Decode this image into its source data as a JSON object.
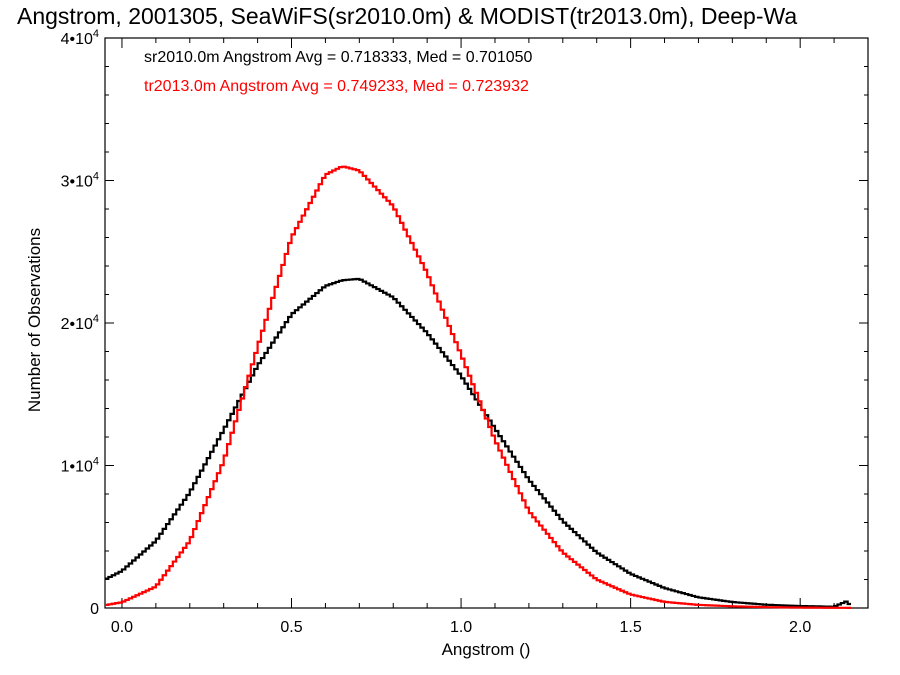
{
  "chart_data": {
    "type": "line",
    "title": "Angstrom, 2001305, SeaWiFS(sr2010.0m) & MODIST(tr2013.0m), Deep-Wa",
    "xlabel": "Angstrom ()",
    "ylabel": "Number of Observations",
    "xlim": [
      -0.05,
      2.2
    ],
    "ylim": [
      0,
      40000
    ],
    "x_ticks": [
      {
        "value": 0.0,
        "label": "0.0"
      },
      {
        "value": 0.5,
        "label": "0.5"
      },
      {
        "value": 1.0,
        "label": "1.0"
      },
      {
        "value": 1.5,
        "label": "1.5"
      },
      {
        "value": 2.0,
        "label": "2.0"
      }
    ],
    "y_ticks": [
      {
        "value": 0,
        "mant": "0",
        "exp": ""
      },
      {
        "value": 10000,
        "mant": "1•10",
        "exp": "4"
      },
      {
        "value": 20000,
        "mant": "2•10",
        "exp": "4"
      },
      {
        "value": 30000,
        "mant": "3•10",
        "exp": "4"
      },
      {
        "value": 40000,
        "mant": "4•10",
        "exp": "4"
      }
    ],
    "grid": false,
    "legend_position": "top-left",
    "series": [
      {
        "name": "sr2010.0m Angstrom Avg = 0.718333, Med = 0.701050",
        "color": "#000000",
        "points": [
          [
            -0.05,
            2000
          ],
          [
            0.0,
            2600
          ],
          [
            0.1,
            4700
          ],
          [
            0.2,
            8100
          ],
          [
            0.3,
            12500
          ],
          [
            0.4,
            17000
          ],
          [
            0.5,
            20600
          ],
          [
            0.6,
            22600
          ],
          [
            0.65,
            23000
          ],
          [
            0.7,
            23100
          ],
          [
            0.8,
            21800
          ],
          [
            0.9,
            19300
          ],
          [
            1.0,
            16300
          ],
          [
            1.1,
            12600
          ],
          [
            1.2,
            9000
          ],
          [
            1.3,
            6100
          ],
          [
            1.4,
            3900
          ],
          [
            1.5,
            2400
          ],
          [
            1.6,
            1400
          ],
          [
            1.7,
            750
          ],
          [
            1.8,
            420
          ],
          [
            1.9,
            230
          ],
          [
            2.0,
            140
          ],
          [
            2.1,
            90
          ],
          [
            2.14,
            500
          ],
          [
            2.15,
            60
          ]
        ]
      },
      {
        "name": "tr2013.0m Angstrom Avg = 0.749233, Med = 0.723932",
        "color": "#ff0000",
        "points": [
          [
            -0.05,
            200
          ],
          [
            0.0,
            400
          ],
          [
            0.1,
            1500
          ],
          [
            0.2,
            4700
          ],
          [
            0.3,
            10300
          ],
          [
            0.4,
            18300
          ],
          [
            0.5,
            26000
          ],
          [
            0.6,
            30400
          ],
          [
            0.65,
            31000
          ],
          [
            0.7,
            30700
          ],
          [
            0.8,
            28200
          ],
          [
            0.9,
            23500
          ],
          [
            1.0,
            17800
          ],
          [
            1.1,
            11800
          ],
          [
            1.2,
            6800
          ],
          [
            1.3,
            3900
          ],
          [
            1.4,
            2000
          ],
          [
            1.5,
            950
          ],
          [
            1.6,
            430
          ],
          [
            1.7,
            220
          ],
          [
            1.8,
            120
          ],
          [
            1.9,
            60
          ],
          [
            2.0,
            30
          ],
          [
            2.15,
            10
          ]
        ]
      }
    ]
  }
}
